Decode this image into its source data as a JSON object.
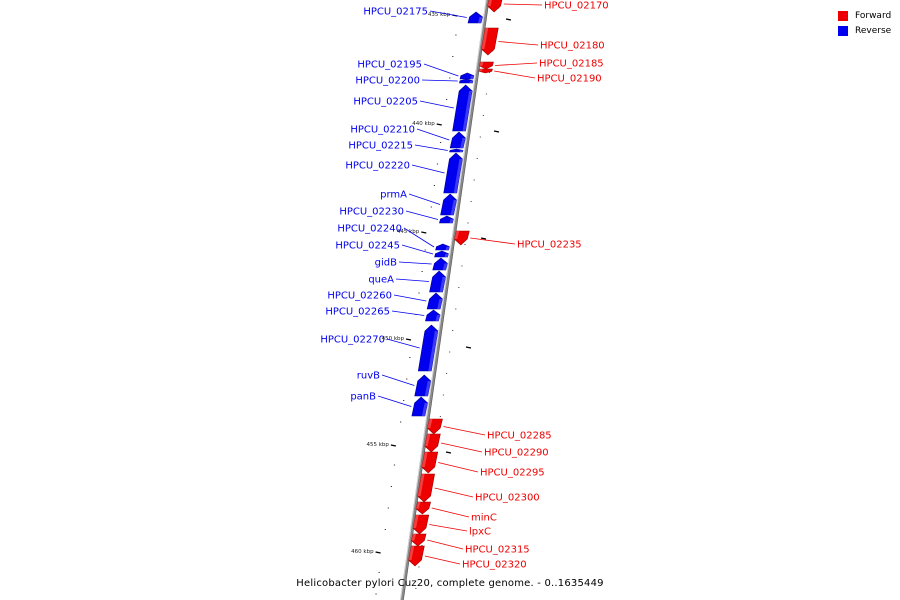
{
  "caption": "Helicobacter pylori Cuz20, complete genome. - 0..1635449",
  "legend": [
    {
      "label": "Forward",
      "color": "#ee0000"
    },
    {
      "label": "Reverse",
      "color": "#0000ee"
    }
  ],
  "colors": {
    "forward": "#ee0000",
    "reverse": "#0000ee",
    "backbone": "#888888"
  },
  "ticks": [
    {
      "label": "435 kbp",
      "kbp": 435
    },
    {
      "label": "440 kbp",
      "kbp": 440
    },
    {
      "label": "445 kbp",
      "kbp": 445
    },
    {
      "label": "450 kbp",
      "kbp": 450
    },
    {
      "label": "455 kbp",
      "kbp": 455
    },
    {
      "label": "460 kbp",
      "kbp": 460
    }
  ],
  "genes": [
    {
      "label": "HPCU_02170",
      "strand": "forward"
    },
    {
      "label": "HPCU_02175",
      "strand": "reverse"
    },
    {
      "label": "HPCU_02180",
      "strand": "forward"
    },
    {
      "label": "HPCU_02185",
      "strand": "forward"
    },
    {
      "label": "HPCU_02190",
      "strand": "forward"
    },
    {
      "label": "HPCU_02195",
      "strand": "reverse"
    },
    {
      "label": "HPCU_02200",
      "strand": "reverse"
    },
    {
      "label": "HPCU_02205",
      "strand": "reverse"
    },
    {
      "label": "HPCU_02210",
      "strand": "reverse"
    },
    {
      "label": "HPCU_02215",
      "strand": "reverse"
    },
    {
      "label": "HPCU_02220",
      "strand": "reverse"
    },
    {
      "label": "prmA",
      "strand": "reverse"
    },
    {
      "label": "HPCU_02230",
      "strand": "reverse"
    },
    {
      "label": "HPCU_02235",
      "strand": "forward"
    },
    {
      "label": "HPCU_02240",
      "strand": "reverse"
    },
    {
      "label": "HPCU_02245",
      "strand": "reverse"
    },
    {
      "label": "gidB",
      "strand": "reverse"
    },
    {
      "label": "queA",
      "strand": "reverse"
    },
    {
      "label": "HPCU_02260",
      "strand": "reverse"
    },
    {
      "label": "HPCU_02265",
      "strand": "reverse"
    },
    {
      "label": "HPCU_02270",
      "strand": "reverse"
    },
    {
      "label": "ruvB",
      "strand": "reverse"
    },
    {
      "label": "panB",
      "strand": "reverse"
    },
    {
      "label": "HPCU_02285",
      "strand": "forward"
    },
    {
      "label": "HPCU_02290",
      "strand": "forward"
    },
    {
      "label": "HPCU_02295",
      "strand": "forward"
    },
    {
      "label": "HPCU_02300",
      "strand": "forward"
    },
    {
      "label": "minC",
      "strand": "forward"
    },
    {
      "label": "lpxC",
      "strand": "forward"
    },
    {
      "label": "HPCU_02315",
      "strand": "forward"
    },
    {
      "label": "HPCU_02320",
      "strand": "forward"
    }
  ]
}
